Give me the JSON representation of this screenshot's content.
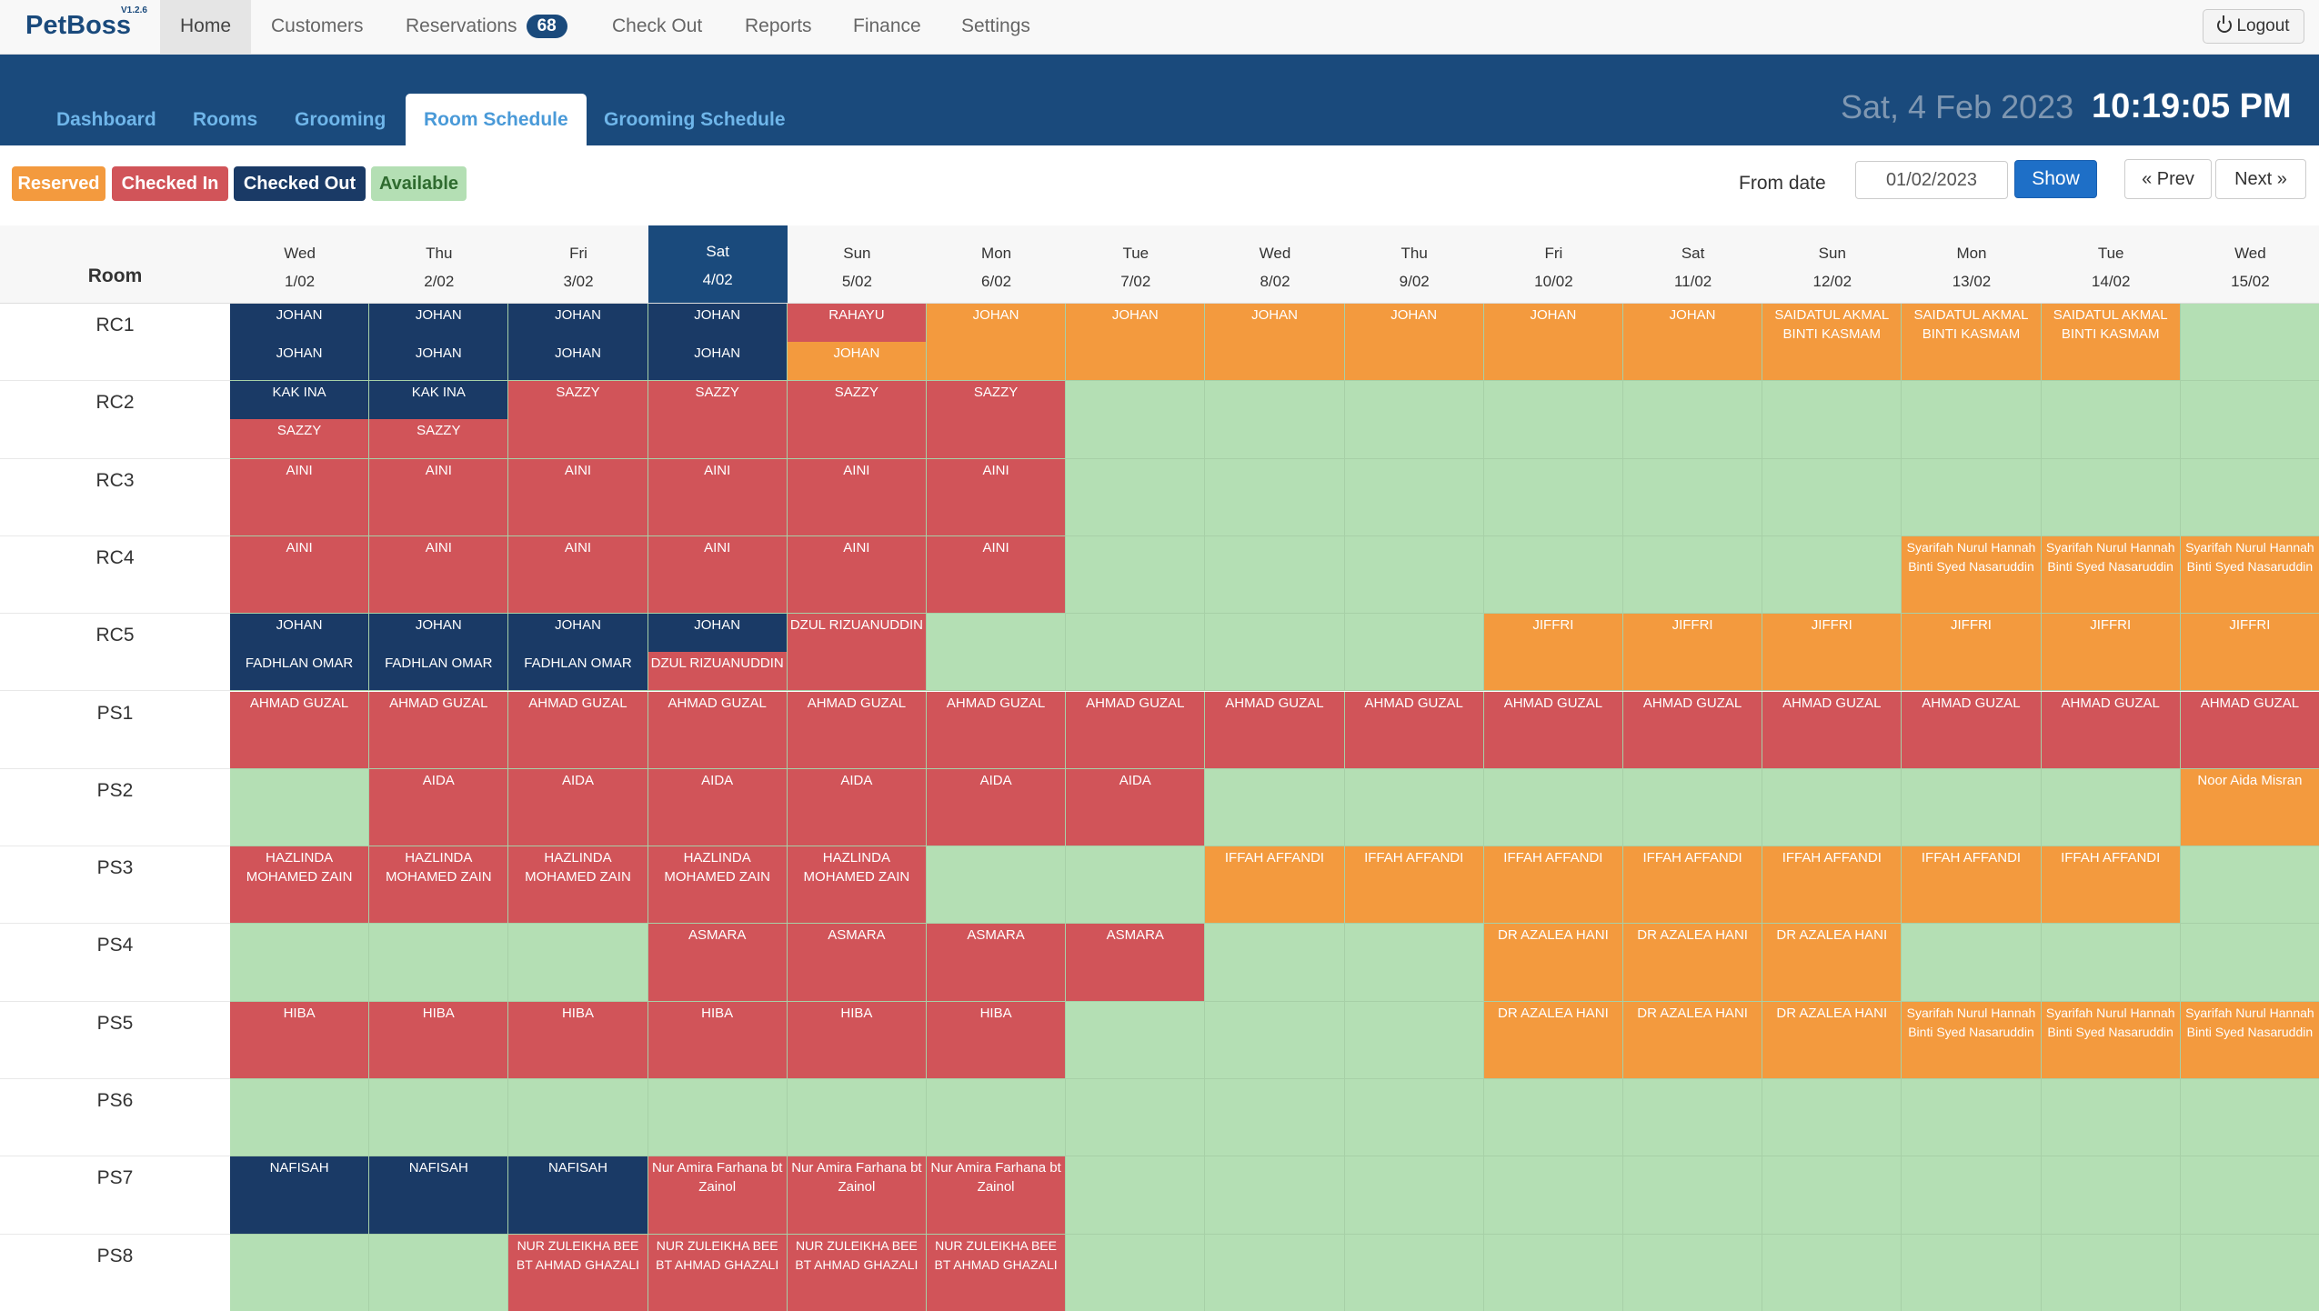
{
  "brand": {
    "name": "PetBoss",
    "version": "V1.2.6"
  },
  "topnav": {
    "home": "Home",
    "customers": "Customers",
    "reservations": "Reservations",
    "reservations_badge": "68",
    "checkout": "Check Out",
    "reports": "Reports",
    "finance": "Finance",
    "settings": "Settings",
    "logout": "Logout"
  },
  "subnav": {
    "dashboard": "Dashboard",
    "rooms": "Rooms",
    "grooming": "Grooming",
    "room_schedule": "Room Schedule",
    "grooming_schedule": "Grooming Schedule"
  },
  "header": {
    "date": "Sat, 4 Feb 2023",
    "time": "10:19:05 PM"
  },
  "legend": {
    "reserved": "Reserved",
    "checked_in": "Checked In",
    "checked_out": "Checked Out",
    "available": "Available"
  },
  "controls": {
    "from_label": "From date",
    "from_value": "01/02/2023",
    "show": "Show",
    "prev": "« Prev",
    "next": "Next »"
  },
  "colors": {
    "reserved": "#f39a3e",
    "checked_in": "#d15459",
    "checked_out": "#1a3a66",
    "available": "#b4dfb4",
    "header_blue": "#1a4a7c"
  },
  "schedule": {
    "room_header": "Room",
    "days": [
      {
        "name": "Wed",
        "date": "1/02"
      },
      {
        "name": "Thu",
        "date": "2/02"
      },
      {
        "name": "Fri",
        "date": "3/02"
      },
      {
        "name": "Sat",
        "date": "4/02"
      },
      {
        "name": "Sun",
        "date": "5/02"
      },
      {
        "name": "Mon",
        "date": "6/02"
      },
      {
        "name": "Tue",
        "date": "7/02"
      },
      {
        "name": "Wed",
        "date": "8/02"
      },
      {
        "name": "Thu",
        "date": "9/02"
      },
      {
        "name": "Fri",
        "date": "10/02"
      },
      {
        "name": "Sat",
        "date": "11/02"
      },
      {
        "name": "Sun",
        "date": "12/02"
      },
      {
        "name": "Mon",
        "date": "13/02"
      },
      {
        "name": "Tue",
        "date": "14/02"
      },
      {
        "name": "Wed",
        "date": "15/02"
      }
    ],
    "today_index": 3,
    "rooms": [
      {
        "name": "RC1",
        "cells": [
          [
            [
              "out",
              "JOHAN"
            ],
            [
              "out",
              "JOHAN"
            ]
          ],
          [
            [
              "out",
              "JOHAN"
            ],
            [
              "out",
              "JOHAN"
            ]
          ],
          [
            [
              "out",
              "JOHAN"
            ],
            [
              "out",
              "JOHAN"
            ]
          ],
          [
            [
              "out",
              "JOHAN"
            ],
            [
              "out",
              "JOHAN"
            ]
          ],
          [
            [
              "in",
              "RAHAYU"
            ],
            [
              "reserved",
              "JOHAN"
            ]
          ],
          [
            [
              "reserved",
              "JOHAN"
            ]
          ],
          [
            [
              "reserved",
              "JOHAN"
            ]
          ],
          [
            [
              "reserved",
              "JOHAN"
            ]
          ],
          [
            [
              "reserved",
              "JOHAN"
            ]
          ],
          [
            [
              "reserved",
              "JOHAN"
            ]
          ],
          [
            [
              "reserved",
              "JOHAN"
            ]
          ],
          [
            [
              "reserved",
              "SAIDATUL AKMAL BINTI KASMAM"
            ]
          ],
          [
            [
              "reserved",
              "SAIDATUL AKMAL BINTI KASMAM"
            ]
          ],
          [
            [
              "reserved",
              "SAIDATUL AKMAL BINTI KASMAM"
            ]
          ],
          []
        ]
      },
      {
        "name": "RC2",
        "cells": [
          [
            [
              "out",
              "KAK INA"
            ],
            [
              "in",
              "SAZZY"
            ]
          ],
          [
            [
              "out",
              "KAK INA"
            ],
            [
              "in",
              "SAZZY"
            ]
          ],
          [
            [
              "in",
              "SAZZY"
            ]
          ],
          [
            [
              "in",
              "SAZZY"
            ]
          ],
          [
            [
              "in",
              "SAZZY"
            ]
          ],
          [
            [
              "in",
              "SAZZY"
            ]
          ],
          [],
          [],
          [],
          [],
          [],
          [],
          [],
          [],
          []
        ]
      },
      {
        "name": "RC3",
        "cells": [
          [
            [
              "in",
              "AINI"
            ]
          ],
          [
            [
              "in",
              "AINI"
            ]
          ],
          [
            [
              "in",
              "AINI"
            ]
          ],
          [
            [
              "in",
              "AINI"
            ]
          ],
          [
            [
              "in",
              "AINI"
            ]
          ],
          [
            [
              "in",
              "AINI"
            ]
          ],
          [],
          [],
          [],
          [],
          [],
          [],
          [],
          [],
          []
        ]
      },
      {
        "name": "RC4",
        "cells": [
          [
            [
              "in",
              "AINI"
            ]
          ],
          [
            [
              "in",
              "AINI"
            ]
          ],
          [
            [
              "in",
              "AINI"
            ]
          ],
          [
            [
              "in",
              "AINI"
            ]
          ],
          [
            [
              "in",
              "AINI"
            ]
          ],
          [
            [
              "in",
              "AINI"
            ]
          ],
          [],
          [],
          [],
          [],
          [],
          [],
          [
            [
              "reserved",
              "Syarifah Nurul Hannah Binti Syed Nasaruddin"
            ]
          ],
          [
            [
              "reserved",
              "Syarifah Nurul Hannah Binti Syed Nasaruddin"
            ]
          ],
          [
            [
              "reserved",
              "Syarifah Nurul Hannah Binti Syed Nasaruddin"
            ]
          ]
        ]
      },
      {
        "name": "RC5",
        "cells": [
          [
            [
              "out",
              "JOHAN"
            ],
            [
              "out",
              "FADHLAN OMAR"
            ]
          ],
          [
            [
              "out",
              "JOHAN"
            ],
            [
              "out",
              "FADHLAN OMAR"
            ]
          ],
          [
            [
              "out",
              "JOHAN"
            ],
            [
              "out",
              "FADHLAN OMAR"
            ]
          ],
          [
            [
              "out",
              "JOHAN"
            ],
            [
              "in",
              "DZUL RIZUANUDDIN"
            ]
          ],
          [
            [
              "in",
              "DZUL RIZUANUDDIN"
            ]
          ],
          [],
          [],
          [],
          [],
          [
            [
              "reserved",
              "JIFFRI"
            ]
          ],
          [
            [
              "reserved",
              "JIFFRI"
            ]
          ],
          [
            [
              "reserved",
              "JIFFRI"
            ]
          ],
          [
            [
              "reserved",
              "JIFFRI"
            ]
          ],
          [
            [
              "reserved",
              "JIFFRI"
            ]
          ],
          [
            [
              "reserved",
              "JIFFRI"
            ]
          ]
        ]
      },
      {
        "name": "PS1",
        "cells": [
          [
            [
              "in",
              "AHMAD GUZAL"
            ]
          ],
          [
            [
              "in",
              "AHMAD GUZAL"
            ]
          ],
          [
            [
              "in",
              "AHMAD GUZAL"
            ]
          ],
          [
            [
              "in",
              "AHMAD GUZAL"
            ]
          ],
          [
            [
              "in",
              "AHMAD GUZAL"
            ]
          ],
          [
            [
              "in",
              "AHMAD GUZAL"
            ]
          ],
          [
            [
              "in",
              "AHMAD GUZAL"
            ]
          ],
          [
            [
              "in",
              "AHMAD GUZAL"
            ]
          ],
          [
            [
              "in",
              "AHMAD GUZAL"
            ]
          ],
          [
            [
              "in",
              "AHMAD GUZAL"
            ]
          ],
          [
            [
              "in",
              "AHMAD GUZAL"
            ]
          ],
          [
            [
              "in",
              "AHMAD GUZAL"
            ]
          ],
          [
            [
              "in",
              "AHMAD GUZAL"
            ]
          ],
          [
            [
              "in",
              "AHMAD GUZAL"
            ]
          ],
          [
            [
              "in",
              "AHMAD GUZAL"
            ]
          ]
        ]
      },
      {
        "name": "PS2",
        "cells": [
          [],
          [
            [
              "in",
              "AIDA"
            ]
          ],
          [
            [
              "in",
              "AIDA"
            ]
          ],
          [
            [
              "in",
              "AIDA"
            ]
          ],
          [
            [
              "in",
              "AIDA"
            ]
          ],
          [
            [
              "in",
              "AIDA"
            ]
          ],
          [
            [
              "in",
              "AIDA"
            ]
          ],
          [],
          [],
          [],
          [],
          [],
          [],
          [],
          [
            [
              "reserved",
              "Noor Aida Misran"
            ]
          ]
        ]
      },
      {
        "name": "PS3",
        "cells": [
          [
            [
              "in",
              "HAZLINDA MOHAMED ZAIN"
            ]
          ],
          [
            [
              "in",
              "HAZLINDA MOHAMED ZAIN"
            ]
          ],
          [
            [
              "in",
              "HAZLINDA MOHAMED ZAIN"
            ]
          ],
          [
            [
              "in",
              "HAZLINDA MOHAMED ZAIN"
            ]
          ],
          [
            [
              "in",
              "HAZLINDA MOHAMED ZAIN"
            ]
          ],
          [],
          [],
          [
            [
              "reserved",
              "IFFAH AFFANDI"
            ]
          ],
          [
            [
              "reserved",
              "IFFAH AFFANDI"
            ]
          ],
          [
            [
              "reserved",
              "IFFAH AFFANDI"
            ]
          ],
          [
            [
              "reserved",
              "IFFAH AFFANDI"
            ]
          ],
          [
            [
              "reserved",
              "IFFAH AFFANDI"
            ]
          ],
          [
            [
              "reserved",
              "IFFAH AFFANDI"
            ]
          ],
          [
            [
              "reserved",
              "IFFAH AFFANDI"
            ]
          ],
          []
        ]
      },
      {
        "name": "PS4",
        "cells": [
          [],
          [],
          [],
          [
            [
              "in",
              "ASMARA"
            ]
          ],
          [
            [
              "in",
              "ASMARA"
            ]
          ],
          [
            [
              "in",
              "ASMARA"
            ]
          ],
          [
            [
              "in",
              "ASMARA"
            ]
          ],
          [],
          [],
          [
            [
              "reserved",
              "DR AZALEA HANI"
            ]
          ],
          [
            [
              "reserved",
              "DR AZALEA HANI"
            ]
          ],
          [
            [
              "reserved",
              "DR AZALEA HANI"
            ]
          ],
          [],
          [],
          []
        ]
      },
      {
        "name": "PS5",
        "cells": [
          [
            [
              "in",
              "HIBA"
            ]
          ],
          [
            [
              "in",
              "HIBA"
            ]
          ],
          [
            [
              "in",
              "HIBA"
            ]
          ],
          [
            [
              "in",
              "HIBA"
            ]
          ],
          [
            [
              "in",
              "HIBA"
            ]
          ],
          [
            [
              "in",
              "HIBA"
            ]
          ],
          [],
          [],
          [],
          [
            [
              "reserved",
              "DR AZALEA HANI"
            ]
          ],
          [
            [
              "reserved",
              "DR AZALEA HANI"
            ]
          ],
          [
            [
              "reserved",
              "DR AZALEA HANI"
            ]
          ],
          [
            [
              "reserved",
              "Syarifah Nurul Hannah Binti Syed Nasaruddin"
            ]
          ],
          [
            [
              "reserved",
              "Syarifah Nurul Hannah Binti Syed Nasaruddin"
            ]
          ],
          [
            [
              "reserved",
              "Syarifah Nurul Hannah Binti Syed Nasaruddin"
            ]
          ]
        ]
      },
      {
        "name": "PS6",
        "cells": [
          [],
          [],
          [],
          [],
          [],
          [],
          [],
          [],
          [],
          [],
          [],
          [],
          [],
          [],
          []
        ]
      },
      {
        "name": "PS7",
        "cells": [
          [
            [
              "out",
              "NAFISAH"
            ]
          ],
          [
            [
              "out",
              "NAFISAH"
            ]
          ],
          [
            [
              "out",
              "NAFISAH"
            ]
          ],
          [
            [
              "in",
              "Nur Amira Farhana bt Zainol"
            ]
          ],
          [
            [
              "in",
              "Nur Amira Farhana bt Zainol"
            ]
          ],
          [
            [
              "in",
              "Nur Amira Farhana bt Zainol"
            ]
          ],
          [],
          [],
          [],
          [],
          [],
          [],
          [],
          [],
          []
        ]
      },
      {
        "name": "PS8",
        "cells": [
          [],
          [],
          [
            [
              "in",
              "NUR ZULEIKHA BEE BT AHMAD GHAZALI"
            ]
          ],
          [
            [
              "in",
              "NUR ZULEIKHA BEE BT AHMAD GHAZALI"
            ]
          ],
          [
            [
              "in",
              "NUR ZULEIKHA BEE BT AHMAD GHAZALI"
            ]
          ],
          [
            [
              "in",
              "NUR ZULEIKHA BEE BT AHMAD GHAZALI"
            ]
          ],
          [],
          [],
          [],
          [],
          [],
          [],
          [],
          [],
          []
        ]
      }
    ]
  }
}
